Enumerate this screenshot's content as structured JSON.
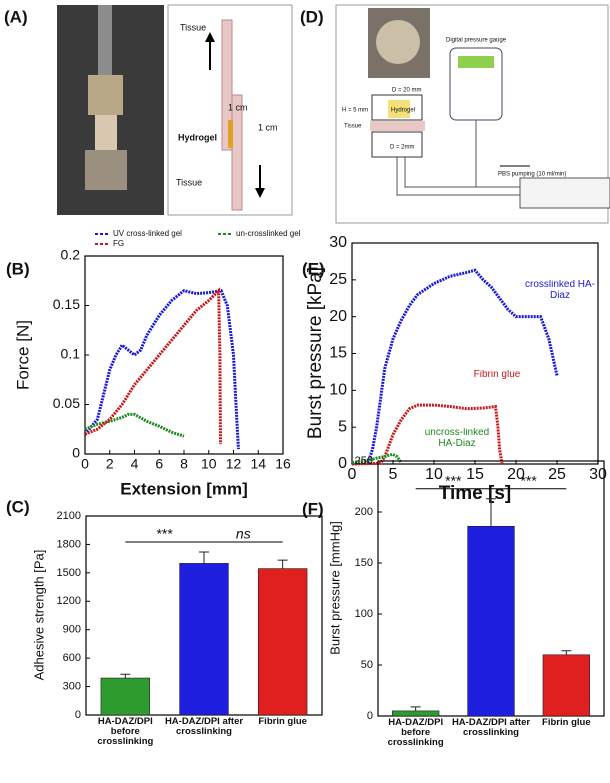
{
  "figure": {
    "panel_labels": [
      "(A)",
      "(D)",
      "(B)",
      "(E)",
      "(C)",
      "(F)"
    ],
    "panel_a": {
      "tissue_top": "Tissue",
      "width": "1 cm",
      "height": "1 cm",
      "hydrogel": "Hydrogel",
      "tissue_bottom": "Tissue"
    },
    "panel_d": {
      "gauge": "Digital pressure gauge",
      "diameter_top": "D = 20 mm",
      "hydrogel": "Hydrogel",
      "height": "H = 5 mm",
      "tissue": "Tissue",
      "diameter_hole": "D = 2mm",
      "pump": "PBS pumping (10 ml/min)"
    }
  },
  "chart_data": [
    {
      "type": "line",
      "xlabel": "Extension [mm]",
      "ylabel": "Force [N]",
      "xlim": [
        0,
        16
      ],
      "xticks": [
        0,
        2,
        4,
        6,
        8,
        10,
        12,
        14,
        16
      ],
      "ylim": [
        0,
        0.2
      ],
      "yticks": [
        0,
        0.05,
        0.1,
        0.15,
        0.2
      ],
      "series": [
        {
          "name": "UV cross-linked gel",
          "color": "#1a1ad6",
          "x": [
            0,
            1,
            1.5,
            2,
            2.5,
            3,
            3.5,
            4,
            4.5,
            5,
            6,
            7,
            8,
            9,
            10,
            11,
            11.5,
            12,
            12.2,
            12.4
          ],
          "values": [
            0.02,
            0.035,
            0.06,
            0.085,
            0.1,
            0.11,
            0.105,
            0.1,
            0.105,
            0.12,
            0.14,
            0.155,
            0.165,
            0.162,
            0.163,
            0.165,
            0.15,
            0.1,
            0.05,
            0.005
          ]
        },
        {
          "name": "un-crosslinked gel",
          "color": "#1f8a1f",
          "x": [
            0,
            1,
            2,
            3,
            3.5,
            4,
            5,
            6,
            7,
            8
          ],
          "values": [
            0.025,
            0.03,
            0.033,
            0.037,
            0.04,
            0.04,
            0.033,
            0.028,
            0.022,
            0.018
          ]
        },
        {
          "name": "FG",
          "color": "#c41a1a",
          "x": [
            0,
            1,
            2,
            3,
            4,
            5,
            6,
            7,
            8,
            9,
            10,
            10.8,
            10.9,
            10.95
          ],
          "values": [
            0.02,
            0.025,
            0.035,
            0.05,
            0.07,
            0.085,
            0.1,
            0.115,
            0.13,
            0.145,
            0.155,
            0.165,
            0.1,
            0.01
          ]
        }
      ]
    },
    {
      "type": "line",
      "xlabel": "Time [s]",
      "ylabel": "Burst pressure [kPa]",
      "xlim": [
        0,
        30
      ],
      "xticks": [
        0,
        5,
        10,
        15,
        20,
        25,
        30
      ],
      "ylim": [
        0,
        30
      ],
      "yticks": [
        0,
        5,
        10,
        15,
        20,
        25,
        30
      ],
      "series": [
        {
          "name": "crosslinked HA-Diaz",
          "color": "#1a1ad6",
          "x": [
            0,
            2,
            2.5,
            3,
            3.5,
            4,
            5,
            6,
            7,
            8,
            10,
            12,
            14,
            15,
            16,
            17,
            18,
            19,
            20,
            22,
            23,
            24,
            25
          ],
          "values": [
            0,
            0.3,
            2,
            5,
            9,
            13,
            17,
            19.5,
            21.5,
            23,
            24.5,
            25.5,
            26,
            26.3,
            25,
            24,
            22.5,
            21,
            20,
            20,
            20,
            17,
            12
          ]
        },
        {
          "name": "Fibrin glue",
          "color": "#c41a1a",
          "x": [
            0,
            3.5,
            4,
            5,
            6,
            7,
            8,
            10,
            12,
            14,
            16,
            17.5,
            17.8,
            18,
            18.3
          ],
          "values": [
            0,
            0.1,
            1,
            4,
            6,
            7.5,
            8,
            8,
            7.8,
            7.5,
            7.6,
            7.8,
            5,
            2,
            0
          ]
        },
        {
          "name": "uncross-linked HA-Diaz",
          "color": "#1f8a1f",
          "x": [
            0,
            2,
            3,
            4,
            4.5,
            5,
            5.5,
            6
          ],
          "values": [
            0.2,
            0.5,
            0.8,
            1,
            1.2,
            1.3,
            1,
            0.2
          ]
        }
      ]
    },
    {
      "type": "bar",
      "ylabel": "Adhesive strength [Pa]",
      "categories": [
        "HA-DAZ/DPI before crosslinking",
        "HA-DAZ/DPI after crosslinking",
        "Fibrin glue"
      ],
      "values": [
        390,
        1600,
        1545
      ],
      "errors": [
        40,
        120,
        90
      ],
      "colors": [
        "#2e9b2e",
        "#1f1fe0",
        "#e01f1f"
      ],
      "ylim": [
        0,
        2100
      ],
      "yticks": [
        0,
        300,
        600,
        900,
        1200,
        1500,
        1800,
        2100
      ],
      "significance": [
        "***",
        "ns"
      ]
    },
    {
      "type": "bar",
      "ylabel": "Burst pressure [mmHg]",
      "categories": [
        "HA-DAZ/DPI before crosslinking",
        "HA-DAZ/DPI after crosslinking",
        "Fibrin glue"
      ],
      "values": [
        5,
        186,
        60
      ],
      "errors": [
        4,
        27,
        4
      ],
      "colors": [
        "#2e9b2e",
        "#1f1fe0",
        "#e01f1f"
      ],
      "ylim": [
        0,
        250
      ],
      "yticks": [
        0,
        50,
        100,
        150,
        200,
        250
      ],
      "significance": [
        "***",
        "***"
      ]
    }
  ]
}
